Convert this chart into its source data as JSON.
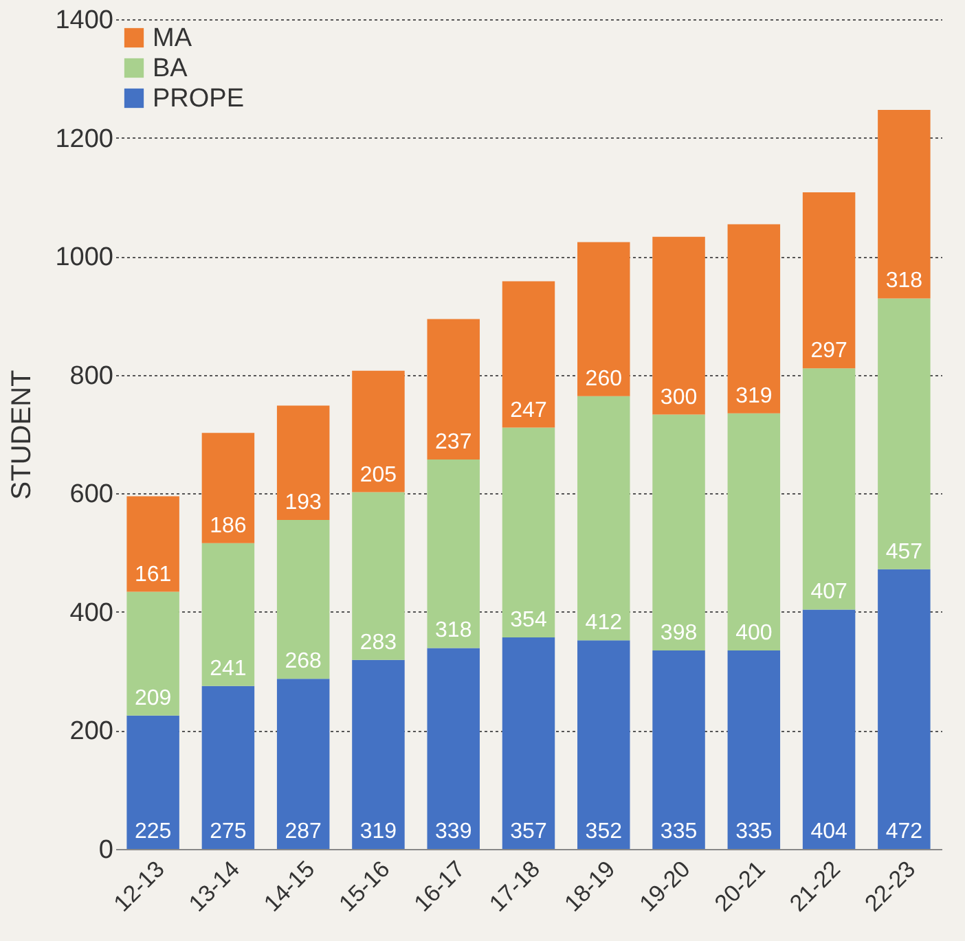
{
  "chart_data": {
    "type": "bar",
    "stacked": true,
    "ylabel": "STUDENT",
    "categories": [
      "12-13",
      "13-14",
      "14-15",
      "15-16",
      "16-17",
      "17-18",
      "18-19",
      "19-20",
      "20-21",
      "21-22",
      "22-23"
    ],
    "series": [
      {
        "name": "PROPE",
        "color": "#4472c4",
        "values": [
          225,
          275,
          287,
          319,
          339,
          357,
          352,
          335,
          335,
          404,
          472
        ]
      },
      {
        "name": "BA",
        "color": "#a9d18e",
        "values": [
          209,
          241,
          268,
          283,
          318,
          354,
          412,
          398,
          400,
          407,
          457
        ]
      },
      {
        "name": "MA",
        "color": "#ed7d31",
        "values": [
          161,
          186,
          193,
          205,
          237,
          247,
          260,
          300,
          319,
          297,
          318
        ]
      }
    ],
    "ylim": [
      0,
      1400
    ],
    "yticks": [
      0,
      200,
      400,
      600,
      800,
      1000,
      1200,
      1400
    ],
    "grid": "y",
    "legend": "top left",
    "data_labels": true
  }
}
